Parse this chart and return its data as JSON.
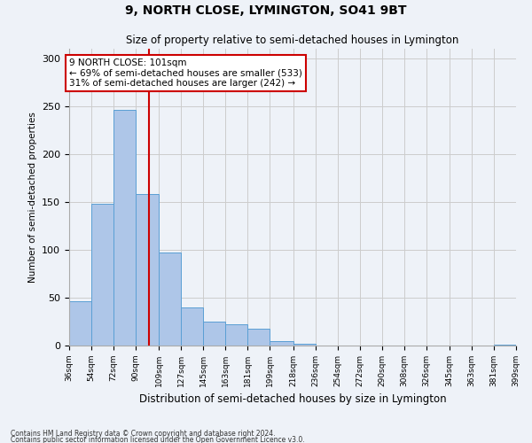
{
  "title": "9, NORTH CLOSE, LYMINGTON, SO41 9BT",
  "subtitle": "Size of property relative to semi-detached houses in Lymington",
  "xlabel": "Distribution of semi-detached houses by size in Lymington",
  "ylabel": "Number of semi-detached properties",
  "bar_edges": [
    36,
    54,
    72,
    90,
    109,
    127,
    145,
    163,
    181,
    199,
    218,
    236,
    254,
    272,
    290,
    308,
    326,
    345,
    363,
    381,
    399
  ],
  "bar_heights": [
    46,
    148,
    246,
    158,
    97,
    40,
    25,
    22,
    18,
    5,
    2,
    0,
    0,
    0,
    0,
    0,
    0,
    0,
    0,
    1
  ],
  "bar_color": "#aec6e8",
  "bar_edge_color": "#5a9fd4",
  "property_size": 101,
  "property_label": "9 NORTH CLOSE: 101sqm",
  "pct_smaller": 69,
  "n_smaller": 533,
  "pct_larger": 31,
  "n_larger": 242,
  "annotation_box_color": "#ffffff",
  "annotation_box_edge_color": "#cc0000",
  "vline_color": "#cc0000",
  "ylim": [
    0,
    310
  ],
  "yticks": [
    0,
    50,
    100,
    150,
    200,
    250,
    300
  ],
  "grid_color": "#cccccc",
  "background_color": "#eef2f8",
  "footnote1": "Contains HM Land Registry data © Crown copyright and database right 2024.",
  "footnote2": "Contains public sector information licensed under the Open Government Licence v3.0."
}
